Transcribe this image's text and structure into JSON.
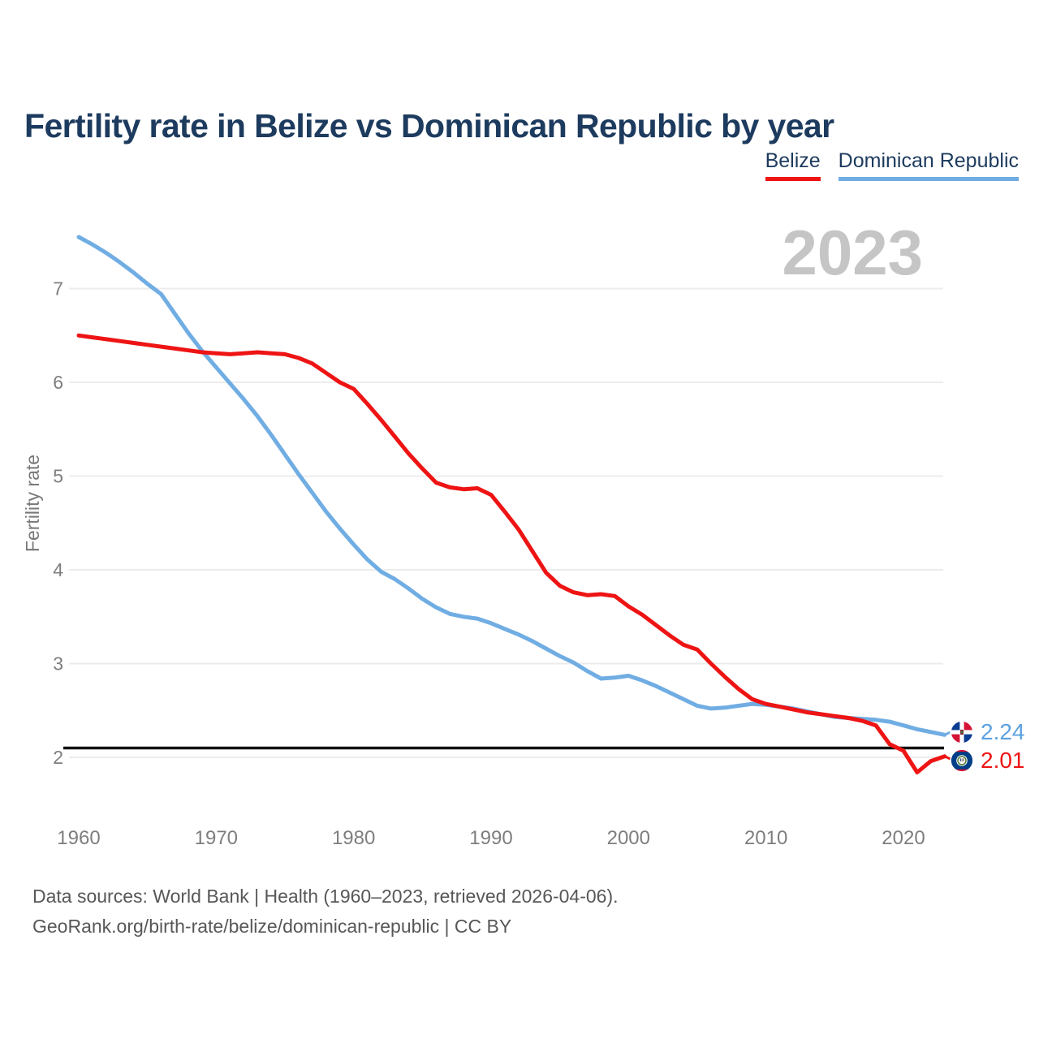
{
  "header": {
    "title": "Fertility rate in Belize vs Dominican Republic by year"
  },
  "legend": {
    "items": [
      {
        "label": "Belize",
        "color": "#ee1414"
      },
      {
        "label": "Dominican Republic",
        "color": "#70ade3"
      }
    ]
  },
  "watermark": "2023",
  "end_labels": {
    "dominican_republic": {
      "value": "2.24",
      "color": "#5ba1e0",
      "flag": "dominican-republic-flag"
    },
    "belize": {
      "value": "2.01",
      "color": "#ee1414",
      "flag": "belize-flag"
    }
  },
  "footer": {
    "line1": "Data sources: World Bank | Health (1960–2023, retrieved 2026-04-06).",
    "line2": "GeoRank.org/birth-rate/belize/dominican-republic | CC BY"
  },
  "chart_data": {
    "type": "line",
    "title": "Fertility rate in Belize vs Dominican Republic by year",
    "xlabel": "",
    "ylabel": "Fertility rate",
    "x_ticks": [
      1960,
      1970,
      1980,
      1990,
      2000,
      2010,
      2020
    ],
    "y_ticks": [
      2,
      3,
      4,
      5,
      6,
      7
    ],
    "ylim": [
      1.7,
      7.6
    ],
    "xlim": [
      1960,
      2023
    ],
    "grid": "horizontal",
    "legend_position": "top-right",
    "reference_line": {
      "value": 2.1,
      "color": "#111111"
    },
    "years": [
      1960,
      1961,
      1962,
      1963,
      1964,
      1965,
      1966,
      1967,
      1968,
      1969,
      1970,
      1971,
      1972,
      1973,
      1974,
      1975,
      1976,
      1977,
      1978,
      1979,
      1980,
      1981,
      1982,
      1983,
      1984,
      1985,
      1986,
      1987,
      1988,
      1989,
      1990,
      1991,
      1992,
      1993,
      1994,
      1995,
      1996,
      1997,
      1998,
      1999,
      2000,
      2001,
      2002,
      2003,
      2004,
      2005,
      2006,
      2007,
      2008,
      2009,
      2010,
      2011,
      2012,
      2013,
      2014,
      2015,
      2016,
      2017,
      2018,
      2019,
      2020,
      2021,
      2022,
      2023
    ],
    "series": [
      {
        "name": "Belize",
        "color": "#ee1414",
        "end_value": 2.01,
        "values": [
          6.5,
          6.48,
          6.46,
          6.44,
          6.42,
          6.4,
          6.38,
          6.36,
          6.34,
          6.32,
          6.31,
          6.3,
          6.31,
          6.32,
          6.31,
          6.3,
          6.26,
          6.2,
          6.1,
          6.0,
          5.93,
          5.77,
          5.6,
          5.42,
          5.24,
          5.08,
          4.93,
          4.88,
          4.86,
          4.87,
          4.8,
          4.62,
          4.43,
          4.2,
          3.97,
          3.83,
          3.76,
          3.73,
          3.74,
          3.72,
          3.61,
          3.52,
          3.41,
          3.3,
          3.2,
          3.15,
          3.0,
          2.86,
          2.73,
          2.62,
          2.57,
          2.54,
          2.51,
          2.48,
          2.46,
          2.44,
          2.42,
          2.39,
          2.34,
          2.14,
          2.07,
          1.84,
          1.96,
          2.01
        ]
      },
      {
        "name": "Dominican Republic",
        "color": "#70ade3",
        "end_value": 2.24,
        "values": [
          7.55,
          7.47,
          7.38,
          7.28,
          7.17,
          7.05,
          6.94,
          6.73,
          6.52,
          6.33,
          6.16,
          5.99,
          5.82,
          5.64,
          5.44,
          5.23,
          5.02,
          4.82,
          4.62,
          4.44,
          4.27,
          4.11,
          3.98,
          3.9,
          3.8,
          3.69,
          3.6,
          3.53,
          3.5,
          3.48,
          3.43,
          3.37,
          3.31,
          3.24,
          3.16,
          3.08,
          3.01,
          2.92,
          2.84,
          2.85,
          2.87,
          2.82,
          2.76,
          2.69,
          2.62,
          2.55,
          2.52,
          2.53,
          2.55,
          2.57,
          2.56,
          2.54,
          2.52,
          2.49,
          2.46,
          2.43,
          2.42,
          2.41,
          2.4,
          2.38,
          2.34,
          2.3,
          2.27,
          2.24
        ]
      }
    ]
  }
}
